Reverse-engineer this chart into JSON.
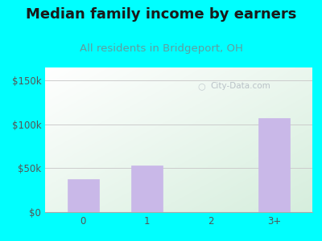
{
  "title": "Median family income by earners",
  "subtitle": "All residents in Bridgeport, OH",
  "categories": [
    "0",
    "1",
    "2",
    "3+"
  ],
  "values": [
    38000,
    53000,
    0,
    107000
  ],
  "bar_color": "#c9b8e8",
  "bar_edge_color": "#c9b8e8",
  "yticks": [
    0,
    50000,
    100000,
    150000
  ],
  "ytick_labels": [
    "$0",
    "$50k",
    "$100k",
    "$150k"
  ],
  "ylim": [
    0,
    165000
  ],
  "outer_bg_color": "#00ffff",
  "plot_bg_top_left_color": "#d6eedd",
  "plot_bg_bottom_right_color": "#ffffff",
  "title_color": "#1a1a1a",
  "subtitle_color": "#5f9ea0",
  "tick_color": "#555555",
  "grid_color": "#cccccc",
  "watermark_text": "City-Data.com",
  "title_fontsize": 13,
  "subtitle_fontsize": 9.5,
  "tick_fontsize": 8.5
}
